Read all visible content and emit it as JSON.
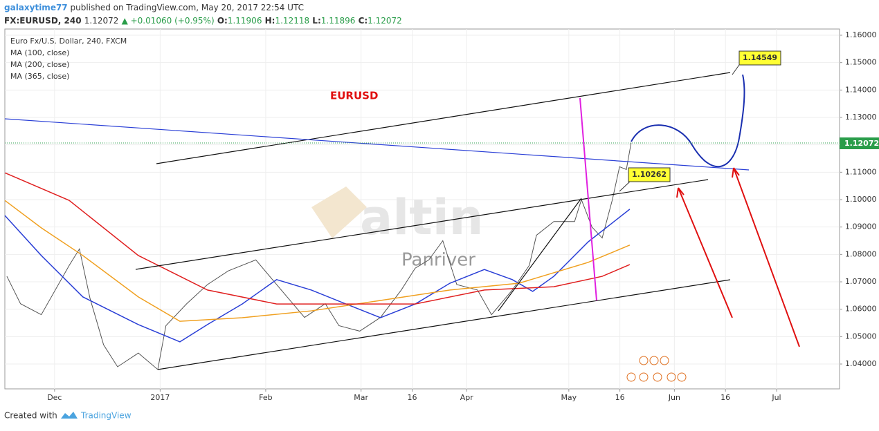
{
  "header": {
    "author": "galaxytime77",
    "published": "published on TradingView.com, May 20, 2017 22:54 UTC",
    "symbol": "FX:EURUSD, 240",
    "last": "1.12072",
    "change": "▲ +0.01060 (+0.95%)",
    "o_label": "O:",
    "o": "1.11906",
    "h_label": "H:",
    "h": "1.12118",
    "l_label": "L:",
    "l": "1.11896",
    "c_label": "C:",
    "c": "1.12072"
  },
  "footer": {
    "created": "Created with",
    "brand": "TradingView"
  },
  "chart_data": {
    "type": "line",
    "title": "Euro Fx/U.S. Dollar, 240, FXCM",
    "annotations": {
      "pair": "EURUSD",
      "target": "1.14549",
      "support": "1.10262",
      "watermark": "altin",
      "author_mark": "Panriver",
      "price_tag": "1.12072"
    },
    "xlim": [
      15.4,
      260.5
    ],
    "ylim": [
      1.03093,
      1.16227
    ],
    "xticks": [
      {
        "value": 30,
        "label": "Dec"
      },
      {
        "value": 61,
        "label": "2017"
      },
      {
        "value": 92,
        "label": "Feb"
      },
      {
        "value": 120,
        "label": "Mar"
      },
      {
        "value": 135,
        "label": "16"
      },
      {
        "value": 151,
        "label": "Apr"
      },
      {
        "value": 181,
        "label": "May"
      },
      {
        "value": 196,
        "label": "16"
      },
      {
        "value": 212,
        "label": "Jun"
      },
      {
        "value": 227,
        "label": "16"
      },
      {
        "value": 242,
        "label": "Jul"
      }
    ],
    "yticks": [
      {
        "value": 1.04,
        "label": "1.04000"
      },
      {
        "value": 1.05,
        "label": "1.05000"
      },
      {
        "value": 1.06,
        "label": "1.06000"
      },
      {
        "value": 1.07,
        "label": "1.07000"
      },
      {
        "value": 1.08,
        "label": "1.08000"
      },
      {
        "value": 1.09,
        "label": "1.09000"
      },
      {
        "value": 1.1,
        "label": "1.10000"
      },
      {
        "value": 1.11,
        "label": "1.11000"
      },
      {
        "value": 1.12,
        "label": "1.12000"
      },
      {
        "value": 1.13,
        "label": "1.13000"
      },
      {
        "value": 1.14,
        "label": "1.14000"
      },
      {
        "value": 1.15,
        "label": "1.15000"
      },
      {
        "value": 1.16,
        "label": "1.16000"
      }
    ],
    "grid": true,
    "series": [
      {
        "color": "#555555",
        "x": [
          16.0,
          20.0,
          26.1,
          34.3,
          37.3,
          40.4,
          44.4,
          48.5,
          54.6,
          60.3,
          62.7,
          68.8,
          74.9,
          81.0,
          89.1,
          95.2,
          103.4,
          109.5,
          113.5,
          119.6,
          125.7,
          131.8,
          135.9,
          139.9,
          144.0,
          148.1,
          154.2,
          158.3,
          164.4,
          169.4,
          171.5,
          176.6,
          182.7,
          184.7,
          187.8,
          190.8,
          193.8,
          195.9,
          197.9,
          199.3
        ],
        "values": [
          1.072,
          1.062,
          1.058,
          1.076,
          1.082,
          1.064,
          1.047,
          1.039,
          1.044,
          1.038,
          1.054,
          1.062,
          1.069,
          1.074,
          1.078,
          1.069,
          1.057,
          1.062,
          1.054,
          1.052,
          1.057,
          1.067,
          1.075,
          1.078,
          1.085,
          1.069,
          1.067,
          1.058,
          1.067,
          1.076,
          1.087,
          1.092,
          1.092,
          1.1,
          1.09,
          1.086,
          1.1,
          1.112,
          1.111,
          1.12072
        ]
      },
      {
        "name": "MA (100, close)",
        "color": "#2a3fd6",
        "x": [
          15.4,
          26.1,
          38.3,
          54.6,
          66.8,
          74.9,
          85.1,
          95.2,
          105.4,
          115.6,
          125.7,
          135.9,
          146.1,
          156.2,
          164.4,
          170.4,
          176.6,
          186.7,
          198.9
        ],
        "values": [
          1.0942,
          1.0796,
          1.0645,
          1.0544,
          1.0481,
          1.0544,
          1.0619,
          1.0708,
          1.067,
          1.0619,
          1.0569,
          1.0619,
          1.0695,
          1.0745,
          1.0708,
          1.0665,
          1.072,
          1.0846,
          1.0965
        ]
      },
      {
        "name": "MA (200, close)",
        "color": "#f0a020",
        "x": [
          15.4,
          26.1,
          38.3,
          54.6,
          66.8,
          85.1,
          105.4,
          125.7,
          146.1,
          166.4,
          186.7,
          198.9
        ],
        "values": [
          1.0997,
          1.0897,
          1.0796,
          1.0645,
          1.0556,
          1.0569,
          1.0594,
          1.0632,
          1.067,
          1.0695,
          1.0771,
          1.0834
        ]
      },
      {
        "name": "MA (365, close)",
        "color": "#e02020",
        "x": [
          15.4,
          34.3,
          54.6,
          74.9,
          95.2,
          115.6,
          135.9,
          156.2,
          176.6,
          190.8,
          198.9
        ],
        "values": [
          1.1098,
          1.0997,
          1.0796,
          1.067,
          1.0619,
          1.0619,
          1.0619,
          1.067,
          1.0682,
          1.072,
          1.0763
        ]
      }
    ]
  }
}
